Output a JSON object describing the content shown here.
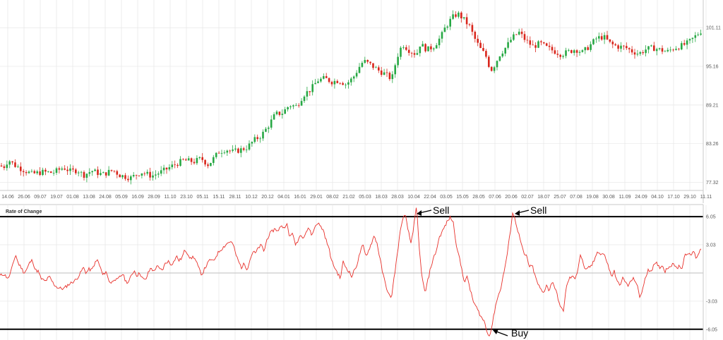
{
  "colors": {
    "up": "#27a844",
    "down": "#d9261c",
    "wick": "#555555",
    "roc_line": "#e8302a",
    "threshold": "#000000",
    "grid": "#e6e6e6",
    "background": "#ffffff"
  },
  "chart_data": [
    {
      "type": "candlestick",
      "title": "",
      "x_tick_labels": [
        "14.06",
        "26.06",
        "09.07",
        "19.07",
        "01.08",
        "13.08",
        "24.08",
        "05.09",
        "16.09",
        "28.09",
        "11.10",
        "23.10",
        "05.11",
        "15.11",
        "28.11",
        "10.12",
        "20.12",
        "04.01",
        "16.01",
        "29.01",
        "08.02",
        "21.02",
        "05.03",
        "18.03",
        "28.03",
        "10.04",
        "22.04",
        "03.05",
        "15.05",
        "28.05",
        "07.06",
        "20.06",
        "02.07",
        "18.07",
        "25.07",
        "07.08",
        "19.08",
        "30.08",
        "11.09",
        "24.09",
        "04.10",
        "17.10",
        "29.10",
        "11.11"
      ],
      "y_tick_labels": [
        "101.11",
        "95.16",
        "89.21",
        "83.26",
        "77.32"
      ],
      "ylim": [
        76.5,
        104.5
      ],
      "grid": true,
      "y_axis_side": "right",
      "close_anchors": [
        [
          0,
          79.9
        ],
        [
          5,
          79.6
        ],
        [
          12,
          80.8
        ],
        [
          20,
          80.0
        ],
        [
          30,
          79.4
        ],
        [
          45,
          78.6
        ],
        [
          60,
          78.9
        ],
        [
          75,
          78.8
        ],
        [
          90,
          79.6
        ],
        [
          100,
          79.0
        ],
        [
          110,
          79.2
        ],
        [
          118,
          78.4
        ],
        [
          130,
          79.1
        ],
        [
          145,
          78.5
        ],
        [
          160,
          79.2
        ],
        [
          170,
          78.4
        ],
        [
          185,
          78.0
        ],
        [
          200,
          78.9
        ],
        [
          215,
          78.3
        ],
        [
          230,
          79.0
        ],
        [
          245,
          79.9
        ],
        [
          260,
          80.7
        ],
        [
          275,
          80.5
        ],
        [
          285,
          81.0
        ],
        [
          295,
          80.0
        ],
        [
          310,
          82.0
        ],
        [
          320,
          82.4
        ],
        [
          330,
          82.0
        ],
        [
          340,
          82.3
        ],
        [
          350,
          82.7
        ],
        [
          360,
          83.8
        ],
        [
          370,
          84.5
        ],
        [
          380,
          86.0
        ],
        [
          390,
          87.8
        ],
        [
          400,
          88.0
        ],
        [
          410,
          89.2
        ],
        [
          420,
          89.0
        ],
        [
          430,
          90.8
        ],
        [
          440,
          91.6
        ],
        [
          450,
          93.0
        ],
        [
          460,
          93.3
        ],
        [
          470,
          92.8
        ],
        [
          480,
          93.0
        ],
        [
          490,
          92.4
        ],
        [
          500,
          93.4
        ],
        [
          510,
          95.3
        ],
        [
          515,
          96.0
        ],
        [
          525,
          95.4
        ],
        [
          535,
          94.6
        ],
        [
          545,
          94.0
        ],
        [
          555,
          93.2
        ],
        [
          562,
          96.5
        ],
        [
          570,
          98.6
        ],
        [
          580,
          97.6
        ],
        [
          590,
          97.0
        ],
        [
          595,
          98.6
        ],
        [
          605,
          97.7
        ],
        [
          615,
          98.3
        ],
        [
          625,
          99.8
        ],
        [
          630,
          101.0
        ],
        [
          640,
          102.6
        ],
        [
          648,
          103.3
        ],
        [
          655,
          102.6
        ],
        [
          665,
          101.3
        ],
        [
          672,
          99.5
        ],
        [
          680,
          97.9
        ],
        [
          688,
          96.8
        ],
        [
          695,
          94.5
        ],
        [
          700,
          95.3
        ],
        [
          708,
          97.0
        ],
        [
          718,
          98.3
        ],
        [
          725,
          99.5
        ],
        [
          735,
          100.4
        ],
        [
          745,
          99.1
        ],
        [
          755,
          98.2
        ],
        [
          765,
          98.7
        ],
        [
          775,
          98.0
        ],
        [
          785,
          97.5
        ],
        [
          795,
          97.0
        ],
        [
          805,
          97.4
        ],
        [
          815,
          97.8
        ],
        [
          825,
          97.3
        ],
        [
          835,
          98.3
        ],
        [
          845,
          99.5
        ],
        [
          855,
          99.7
        ],
        [
          865,
          98.6
        ],
        [
          875,
          98.2
        ],
        [
          885,
          98.1
        ],
        [
          895,
          97.5
        ],
        [
          905,
          97.1
        ],
        [
          915,
          97.8
        ],
        [
          925,
          98.0
        ],
        [
          935,
          97.7
        ],
        [
          945,
          97.4
        ],
        [
          955,
          98.0
        ],
        [
          965,
          98.3
        ],
        [
          975,
          98.8
        ],
        [
          985,
          99.8
        ],
        [
          993,
          100.6
        ]
      ]
    },
    {
      "type": "line",
      "title": "Rate of Change",
      "y_tick_labels": [
        "6.05",
        "3.03",
        "-3.03",
        "-6.05"
      ],
      "ylim": [
        -6.9,
        7.2
      ],
      "zero_line": true,
      "grid": true,
      "threshold_lines": [
        6.05,
        -6.05
      ],
      "annotations": [
        "Sell",
        "Sell",
        "Buy"
      ],
      "anchors": [
        [
          0,
          -0.3
        ],
        [
          5,
          -0.1
        ],
        [
          12,
          -0.6
        ],
        [
          18,
          0.8
        ],
        [
          22,
          2.0
        ],
        [
          26,
          1.0
        ],
        [
          30,
          0.6
        ],
        [
          34,
          0.0
        ],
        [
          38,
          0.4
        ],
        [
          42,
          1.1
        ],
        [
          46,
          1.4
        ],
        [
          50,
          0.3
        ],
        [
          54,
          0.2
        ],
        [
          58,
          -0.6
        ],
        [
          64,
          -0.9
        ],
        [
          70,
          -0.4
        ],
        [
          76,
          -1.2
        ],
        [
          82,
          -1.6
        ],
        [
          90,
          -1.7
        ],
        [
          96,
          -1.3
        ],
        [
          102,
          -1.0
        ],
        [
          108,
          -0.7
        ],
        [
          114,
          0.0
        ],
        [
          118,
          0.6
        ],
        [
          122,
          0.0
        ],
        [
          126,
          0.4
        ],
        [
          130,
          0.3
        ],
        [
          134,
          1.0
        ],
        [
          138,
          1.4
        ],
        [
          142,
          0.6
        ],
        [
          146,
          -0.3
        ],
        [
          150,
          0.2
        ],
        [
          154,
          -0.8
        ],
        [
          158,
          -1.1
        ],
        [
          162,
          -0.6
        ],
        [
          166,
          -0.8
        ],
        [
          170,
          -0.4
        ],
        [
          174,
          -0.1
        ],
        [
          178,
          -0.9
        ],
        [
          182,
          -1.0
        ],
        [
          186,
          -0.3
        ],
        [
          190,
          0.3
        ],
        [
          194,
          -0.3
        ],
        [
          198,
          0.0
        ],
        [
          202,
          -0.6
        ],
        [
          206,
          -0.8
        ],
        [
          210,
          0.0
        ],
        [
          214,
          0.6
        ],
        [
          218,
          0.1
        ],
        [
          222,
          0.8
        ],
        [
          226,
          0.4
        ],
        [
          230,
          0.3
        ],
        [
          234,
          1.0
        ],
        [
          238,
          1.3
        ],
        [
          242,
          0.9
        ],
        [
          246,
          1.2
        ],
        [
          250,
          1.8
        ],
        [
          254,
          1.3
        ],
        [
          258,
          1.7
        ],
        [
          262,
          2.5
        ],
        [
          266,
          2.1
        ],
        [
          270,
          1.5
        ],
        [
          274,
          1.8
        ],
        [
          278,
          1.2
        ],
        [
          282,
          0.4
        ],
        [
          286,
          -0.2
        ],
        [
          290,
          0.5
        ],
        [
          294,
          1.0
        ],
        [
          298,
          1.5
        ],
        [
          302,
          1.2
        ],
        [
          306,
          1.8
        ],
        [
          310,
          2.3
        ],
        [
          314,
          2.6
        ],
        [
          318,
          2.9
        ],
        [
          322,
          3.2
        ],
        [
          326,
          3.4
        ],
        [
          330,
          3.1
        ],
        [
          334,
          2.0
        ],
        [
          338,
          1.2
        ],
        [
          342,
          0.6
        ],
        [
          346,
          1.0
        ],
        [
          350,
          0.4
        ],
        [
          354,
          1.4
        ],
        [
          358,
          2.3
        ],
        [
          362,
          2.1
        ],
        [
          366,
          2.7
        ],
        [
          370,
          3.0
        ],
        [
          374,
          2.3
        ],
        [
          378,
          3.6
        ],
        [
          382,
          4.2
        ],
        [
          386,
          4.5
        ],
        [
          390,
          4.8
        ],
        [
          394,
          4.4
        ],
        [
          398,
          5.2
        ],
        [
          402,
          4.8
        ],
        [
          406,
          5.4
        ],
        [
          410,
          3.8
        ],
        [
          414,
          4.4
        ],
        [
          418,
          3.0
        ],
        [
          422,
          3.5
        ],
        [
          426,
          4.2
        ],
        [
          430,
          3.8
        ],
        [
          434,
          4.5
        ],
        [
          438,
          4.8
        ],
        [
          442,
          4.0
        ],
        [
          446,
          5.0
        ],
        [
          450,
          5.4
        ],
        [
          454,
          5.0
        ],
        [
          458,
          4.6
        ],
        [
          462,
          3.5
        ],
        [
          466,
          2.6
        ],
        [
          470,
          1.2
        ],
        [
          474,
          0.6
        ],
        [
          478,
          0.0
        ],
        [
          482,
          -0.6
        ],
        [
          486,
          1.2
        ],
        [
          490,
          0.6
        ],
        [
          494,
          0.2
        ],
        [
          498,
          -0.4
        ],
        [
          502,
          0.3
        ],
        [
          506,
          1.0
        ],
        [
          510,
          2.2
        ],
        [
          514,
          3.0
        ],
        [
          518,
          1.8
        ],
        [
          522,
          2.4
        ],
        [
          526,
          3.2
        ],
        [
          530,
          4.0
        ],
        [
          534,
          3.2
        ],
        [
          538,
          1.6
        ],
        [
          542,
          0.0
        ],
        [
          546,
          -1.2
        ],
        [
          550,
          -2.2
        ],
        [
          554,
          -2.8
        ],
        [
          558,
          -0.6
        ],
        [
          562,
          1.6
        ],
        [
          566,
          4.0
        ],
        [
          570,
          5.8
        ],
        [
          574,
          6.2
        ],
        [
          578,
          4.6
        ],
        [
          582,
          3.2
        ],
        [
          586,
          5.0
        ],
        [
          590,
          7.1
        ],
        [
          594,
          2.4
        ],
        [
          598,
          -0.6
        ],
        [
          602,
          -2.2
        ],
        [
          606,
          -0.8
        ],
        [
          610,
          0.6
        ],
        [
          614,
          1.6
        ],
        [
          618,
          2.4
        ],
        [
          622,
          3.8
        ],
        [
          626,
          4.4
        ],
        [
          630,
          5.0
        ],
        [
          634,
          5.6
        ],
        [
          638,
          6.0
        ],
        [
          642,
          5.4
        ],
        [
          646,
          3.2
        ],
        [
          650,
          1.8
        ],
        [
          654,
          0.4
        ],
        [
          658,
          -1.0
        ],
        [
          662,
          -0.4
        ],
        [
          666,
          -1.8
        ],
        [
          670,
          -3.0
        ],
        [
          674,
          -3.6
        ],
        [
          678,
          -4.2
        ],
        [
          682,
          -4.8
        ],
        [
          686,
          -5.2
        ],
        [
          690,
          -6.4
        ],
        [
          694,
          -6.7
        ],
        [
          698,
          -5.2
        ],
        [
          702,
          -3.4
        ],
        [
          706,
          -2.4
        ],
        [
          710,
          -1.4
        ],
        [
          714,
          0.2
        ],
        [
          718,
          1.8
        ],
        [
          722,
          4.0
        ],
        [
          726,
          6.5
        ],
        [
          730,
          5.6
        ],
        [
          734,
          4.4
        ],
        [
          738,
          3.2
        ],
        [
          742,
          2.0
        ],
        [
          746,
          1.8
        ],
        [
          750,
          0.6
        ],
        [
          754,
          0.8
        ],
        [
          758,
          -0.4
        ],
        [
          762,
          -1.2
        ],
        [
          766,
          -1.8
        ],
        [
          770,
          -2.2
        ],
        [
          774,
          -1.2
        ],
        [
          778,
          -2.0
        ],
        [
          782,
          -0.8
        ],
        [
          786,
          -1.6
        ],
        [
          790,
          -2.6
        ],
        [
          794,
          -3.8
        ],
        [
          798,
          -4.0
        ],
        [
          802,
          -1.6
        ],
        [
          806,
          -0.6
        ],
        [
          810,
          -0.4
        ],
        [
          814,
          -0.6
        ],
        [
          818,
          0.2
        ],
        [
          822,
          2.0
        ],
        [
          826,
          1.0
        ],
        [
          830,
          0.2
        ],
        [
          834,
          0.6
        ],
        [
          838,
          0.8
        ],
        [
          842,
          1.4
        ],
        [
          846,
          2.4
        ],
        [
          850,
          2.0
        ],
        [
          854,
          2.1
        ],
        [
          858,
          1.6
        ],
        [
          862,
          0.6
        ],
        [
          866,
          -0.4
        ],
        [
          870,
          0.2
        ],
        [
          874,
          -1.0
        ],
        [
          878,
          -1.2
        ],
        [
          882,
          -0.6
        ],
        [
          886,
          -1.0
        ],
        [
          890,
          -1.4
        ],
        [
          894,
          -0.8
        ],
        [
          898,
          -0.6
        ],
        [
          902,
          -1.2
        ],
        [
          906,
          -2.6
        ],
        [
          910,
          -1.8
        ],
        [
          914,
          -0.6
        ],
        [
          918,
          0.4
        ],
        [
          922,
          0.2
        ],
        [
          926,
          0.8
        ],
        [
          930,
          1.0
        ],
        [
          934,
          0.6
        ],
        [
          938,
          0.8
        ],
        [
          942,
          0.2
        ],
        [
          946,
          0.6
        ],
        [
          950,
          0.8
        ],
        [
          954,
          1.1
        ],
        [
          958,
          0.4
        ],
        [
          962,
          0.8
        ],
        [
          966,
          0.5
        ],
        [
          970,
          2.0
        ],
        [
          974,
          2.2
        ],
        [
          978,
          1.8
        ],
        [
          982,
          2.4
        ],
        [
          986,
          1.6
        ],
        [
          990,
          2.2
        ],
        [
          994,
          2.8
        ]
      ]
    }
  ],
  "annotations": {
    "sell_1": "Sell",
    "sell_2": "Sell",
    "buy": "Buy"
  }
}
